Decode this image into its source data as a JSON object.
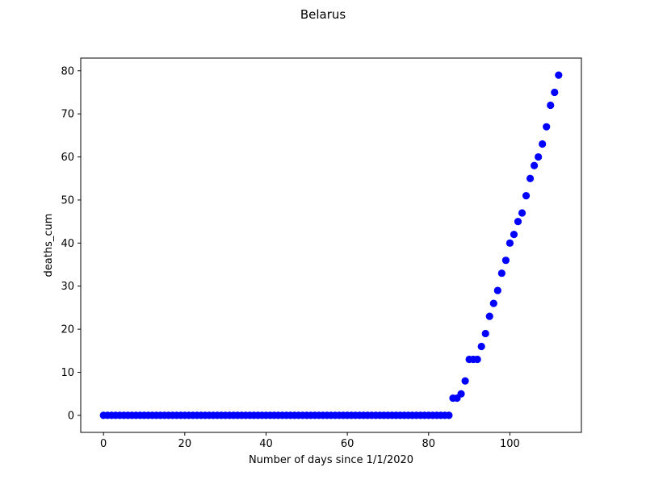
{
  "chart_data": {
    "type": "scatter",
    "title": "Belarus",
    "xlabel": "Number of days since 1/1/2020",
    "ylabel": "deaths_cum",
    "xlim": [
      -5.6,
      117.6
    ],
    "ylim": [
      -3.95,
      82.95
    ],
    "xticks": [
      0,
      20,
      40,
      60,
      80,
      100
    ],
    "yticks": [
      0,
      10,
      20,
      30,
      40,
      50,
      60,
      70,
      80
    ],
    "grid": false,
    "marker_color": "#0000ff",
    "series": [
      {
        "x": [
          0,
          1,
          2,
          3,
          4,
          5,
          6,
          7,
          8,
          9,
          10,
          11,
          12,
          13,
          14,
          15,
          16,
          17,
          18,
          19,
          20,
          21,
          22,
          23,
          24,
          25,
          26,
          27,
          28,
          29,
          30,
          31,
          32,
          33,
          34,
          35,
          36,
          37,
          38,
          39,
          40,
          41,
          42,
          43,
          44,
          45,
          46,
          47,
          48,
          49,
          50,
          51,
          52,
          53,
          54,
          55,
          56,
          57,
          58,
          59,
          60,
          61,
          62,
          63,
          64,
          65,
          66,
          67,
          68,
          69,
          70,
          71,
          72,
          73,
          74,
          75,
          76,
          77,
          78,
          79,
          80,
          81,
          82,
          83,
          84,
          85,
          86,
          87,
          88,
          89,
          90,
          91,
          92,
          93,
          94,
          95,
          96,
          97,
          98,
          99,
          100,
          101,
          102,
          103,
          104,
          105,
          106,
          107,
          108,
          109,
          110,
          111,
          112
        ],
        "y": [
          0,
          0,
          0,
          0,
          0,
          0,
          0,
          0,
          0,
          0,
          0,
          0,
          0,
          0,
          0,
          0,
          0,
          0,
          0,
          0,
          0,
          0,
          0,
          0,
          0,
          0,
          0,
          0,
          0,
          0,
          0,
          0,
          0,
          0,
          0,
          0,
          0,
          0,
          0,
          0,
          0,
          0,
          0,
          0,
          0,
          0,
          0,
          0,
          0,
          0,
          0,
          0,
          0,
          0,
          0,
          0,
          0,
          0,
          0,
          0,
          0,
          0,
          0,
          0,
          0,
          0,
          0,
          0,
          0,
          0,
          0,
          0,
          0,
          0,
          0,
          0,
          0,
          0,
          0,
          0,
          0,
          0,
          0,
          0,
          0,
          0,
          4,
          4,
          5,
          8,
          13,
          13,
          13,
          16,
          19,
          23,
          26,
          29,
          33,
          36,
          40,
          42,
          45,
          47,
          51,
          55,
          58,
          60,
          63,
          67,
          72,
          75,
          79
        ]
      }
    ]
  }
}
